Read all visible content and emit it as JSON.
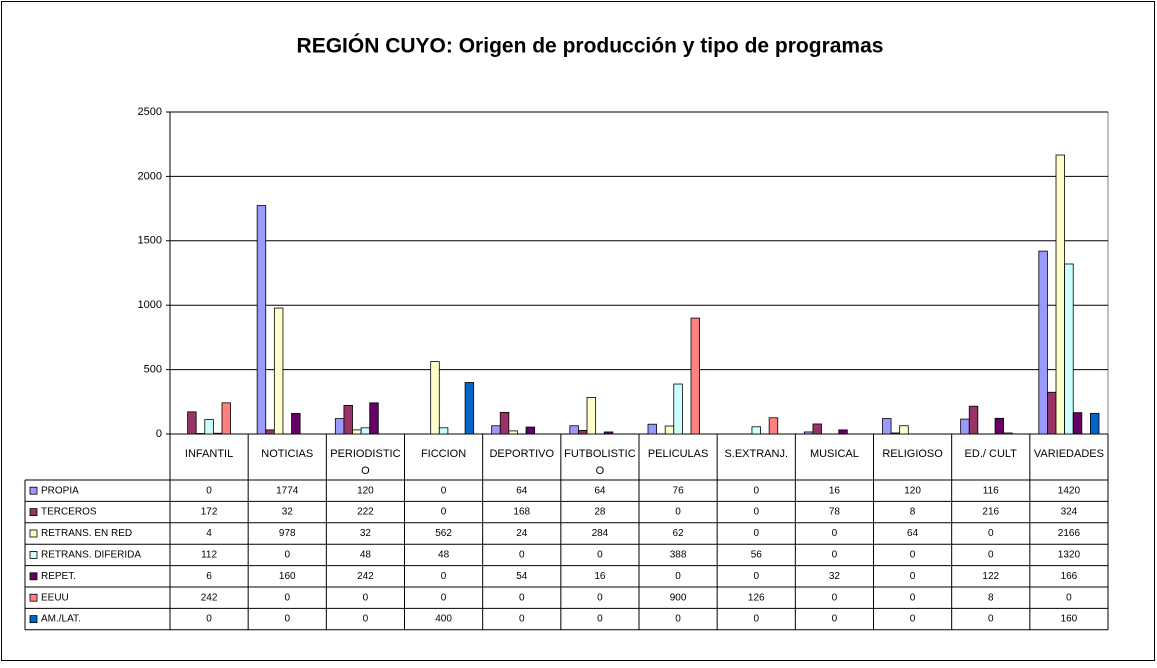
{
  "chart_data": {
    "type": "bar",
    "title": "REGIÓN CUYO: Origen de producción y tipo de programas",
    "categories": [
      "INFANTIL",
      "NOTICIAS",
      "PERIODISTICO",
      "FICCION",
      "DEPORTIVO",
      "FUTBOLISTICO",
      "PELICULAS",
      "S.EXTRANJ.",
      "MUSICAL",
      "RELIGIOSO",
      "ED./ CULT",
      "VARIEDADES"
    ],
    "series": [
      {
        "name": "PROPIA",
        "color": "#9999ff",
        "values": [
          0,
          1774,
          120,
          0,
          64,
          64,
          76,
          0,
          16,
          120,
          116,
          1420
        ]
      },
      {
        "name": "TERCEROS",
        "color": "#993366",
        "values": [
          172,
          32,
          222,
          0,
          168,
          28,
          0,
          0,
          78,
          8,
          216,
          324
        ]
      },
      {
        "name": "RETRANS. EN RED",
        "color": "#ffffcc",
        "values": [
          4,
          978,
          32,
          562,
          24,
          284,
          62,
          0,
          0,
          64,
          0,
          2166
        ]
      },
      {
        "name": "RETRANS. DIFERIDA",
        "color": "#ccffff",
        "values": [
          112,
          0,
          48,
          48,
          0,
          0,
          388,
          56,
          0,
          0,
          0,
          1320
        ]
      },
      {
        "name": "REPET.",
        "color": "#660066",
        "values": [
          6,
          160,
          242,
          0,
          54,
          16,
          0,
          0,
          32,
          0,
          122,
          166
        ]
      },
      {
        "name": "EEUU",
        "color": "#ff8080",
        "values": [
          242,
          0,
          0,
          0,
          0,
          0,
          900,
          126,
          0,
          0,
          8,
          0
        ]
      },
      {
        "name": "AM./LAT.",
        "color": "#0066cc",
        "values": [
          0,
          0,
          0,
          400,
          0,
          0,
          0,
          0,
          0,
          0,
          0,
          160
        ]
      }
    ],
    "ylim": [
      0,
      2500
    ],
    "yticks": [
      0,
      500,
      1000,
      1500,
      2000,
      2500
    ],
    "grid": true
  }
}
